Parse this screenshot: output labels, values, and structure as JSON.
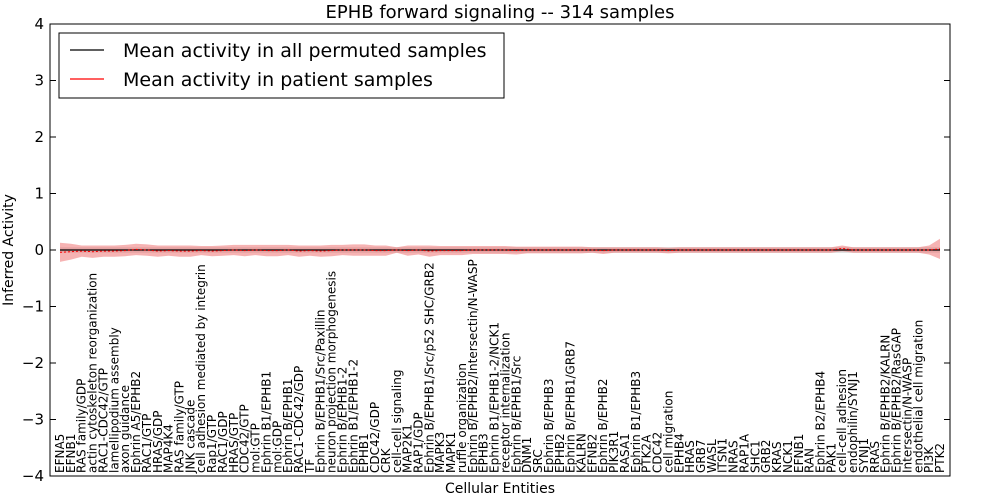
{
  "chart_data": {
    "type": "line",
    "title": "EPHB forward signaling -- 314 samples",
    "xlabel": "Cellular Entities",
    "ylabel": "Inferred Activity",
    "ylim": [
      -4,
      4
    ],
    "yticks": [
      -4,
      -3,
      -2,
      -1,
      0,
      1,
      2,
      3,
      4
    ],
    "grid": false,
    "legend_position": "top-left",
    "categories": [
      "EFNA5",
      "EFNB1",
      "RAS family/GDP",
      "actin cytoskeleton reorganization",
      "RAC1-CDC42/GTP",
      "lamellipodium assembly",
      "axon guidance",
      "Ephrin A5/EPHB2",
      "RAC1/GTP",
      "HRAS/GDP",
      "MAP4K4",
      "RAS family/GTP",
      "JNK cascade",
      "cell adhesion mediated by integrin",
      "Rap1/GTP",
      "RAC1/GDP",
      "HRAS/GTP",
      "CDC42/GTP",
      "mol:GTP",
      "Ephrin B1/EPHB1",
      "mol:GDP",
      "Ephrin B/EPHB1",
      "RAC1-CDC42/GDP",
      "TF",
      "Ephrin B/EPHB1/Src/Paxillin",
      "neuron projection morphogenesis",
      "Ephrin B/EPHB1-2",
      "Ephrin B1/EPHB1-2",
      "EPHB1",
      "CDC42/GDP",
      "CRK",
      "cell-cell signaling",
      "MAP2K1",
      "RAP1/GDP",
      "Ephrin B/EPHB1/Src/p52 SHC/GRB2",
      "MAPK3",
      "MAPK1",
      "ruffle organization",
      "Ephrin B/EPHB2/Intersectin/N-WASP",
      "EPHB3",
      "Ephrin B1/EPHB1-2/NCK1",
      "receptor internalization",
      "Ephrin B/EPHB1/Src",
      "DNM1",
      "SRC",
      "Ephrin B/EPHB3",
      "EPHB2",
      "Ephrin B/EPHB1/GRB7",
      "KALRN",
      "EFNB2",
      "Ephrin B/EPHB2",
      "PIK3R1",
      "RASA1",
      "Ephrin B1/EPHB3",
      "PTK2A",
      "CDC42",
      "cell migration",
      "EPHB4",
      "HRAS",
      "GRB7",
      "WASL",
      "ITSN1",
      "NRAS",
      "RAP1A",
      "SHC1",
      "GRB2",
      "KRAS",
      "NCK1",
      "EFNB1",
      "RAN",
      "Ephrin B2/EPHB4",
      "PAK1",
      "cell-cell adhesion",
      "endophilin/SYNJ1",
      "SYNJ1",
      "RRAS",
      "Ephrin B/EPHB2/KALRN",
      "Ephrin B/EPHB2/RasGAP",
      "Intersectin/N-WASP",
      "endothelial cell migration",
      "PI3K",
      "PTK2"
    ],
    "series": [
      {
        "name": "Mean activity in all permuted samples",
        "color": "#000000",
        "values": [
          0.0,
          0.0,
          0.0,
          0.0,
          0.0,
          0.0,
          0.0,
          0.0,
          0.0,
          0.0,
          0.0,
          0.0,
          0.0,
          0.0,
          0.0,
          0.0,
          0.0,
          0.0,
          0.0,
          0.0,
          0.0,
          0.0,
          0.0,
          0.0,
          0.0,
          0.0,
          0.0,
          0.0,
          0.0,
          0.0,
          0.0,
          0.0,
          0.0,
          0.0,
          0.0,
          0.0,
          0.0,
          0.0,
          0.0,
          0.0,
          0.0,
          0.0,
          0.0,
          0.0,
          0.0,
          0.0,
          0.0,
          0.0,
          0.0,
          0.0,
          0.0,
          0.0,
          0.0,
          0.0,
          0.0,
          0.0,
          0.0,
          0.0,
          0.0,
          0.0,
          0.0,
          0.0,
          0.0,
          0.0,
          0.0,
          0.0,
          0.0,
          0.0,
          0.0,
          0.0,
          0.0,
          0.0,
          0.0,
          0.0,
          0.0,
          0.0,
          0.0,
          0.0,
          0.0,
          0.0,
          0.0,
          0.0
        ]
      },
      {
        "name": "Mean activity in patient samples",
        "color": "#ff0000",
        "values": [
          -0.04,
          -0.03,
          -0.02,
          -0.03,
          -0.02,
          -0.02,
          -0.01,
          0.01,
          0.0,
          -0.02,
          -0.01,
          -0.02,
          -0.02,
          -0.01,
          -0.02,
          -0.01,
          0.0,
          -0.01,
          0.0,
          -0.01,
          -0.01,
          0.0,
          -0.02,
          -0.01,
          -0.02,
          -0.01,
          0.0,
          0.0,
          0.0,
          -0.01,
          -0.01,
          0.0,
          -0.01,
          0.0,
          -0.02,
          -0.01,
          -0.01,
          -0.01,
          0.0,
          0.0,
          0.0,
          0.0,
          -0.01,
          0.0,
          0.0,
          0.0,
          0.0,
          0.0,
          0.0,
          0.0,
          -0.01,
          0.0,
          0.0,
          0.0,
          0.0,
          0.0,
          -0.01,
          0.0,
          0.0,
          0.0,
          0.0,
          0.0,
          0.0,
          0.0,
          0.0,
          0.0,
          0.0,
          0.0,
          0.0,
          0.0,
          0.0,
          0.0,
          0.03,
          0.0,
          0.0,
          0.0,
          0.0,
          0.0,
          0.0,
          0.0,
          0.0,
          0.02
        ]
      }
    ],
    "bands": {
      "permuted_halfwidth": [
        0.05,
        0.05,
        0.05,
        0.05,
        0.05,
        0.05,
        0.05,
        0.05,
        0.05,
        0.05,
        0.05,
        0.05,
        0.05,
        0.05,
        0.05,
        0.05,
        0.05,
        0.05,
        0.05,
        0.05,
        0.05,
        0.05,
        0.05,
        0.05,
        0.05,
        0.05,
        0.05,
        0.05,
        0.05,
        0.05,
        0.05,
        0.05,
        0.05,
        0.05,
        0.05,
        0.05,
        0.05,
        0.05,
        0.05,
        0.05,
        0.05,
        0.05,
        0.05,
        0.05,
        0.05,
        0.05,
        0.05,
        0.05,
        0.05,
        0.05,
        0.05,
        0.05,
        0.05,
        0.05,
        0.05,
        0.05,
        0.05,
        0.05,
        0.05,
        0.05,
        0.05,
        0.05,
        0.05,
        0.05,
        0.05,
        0.05,
        0.05,
        0.05,
        0.05,
        0.05,
        0.05,
        0.05,
        0.05,
        0.05,
        0.05,
        0.05,
        0.05,
        0.05,
        0.05,
        0.05,
        0.05,
        0.05
      ],
      "patient_halfwidth": [
        0.17,
        0.14,
        0.1,
        0.11,
        0.1,
        0.1,
        0.1,
        0.1,
        0.1,
        0.1,
        0.09,
        0.1,
        0.1,
        0.08,
        0.09,
        0.09,
        0.09,
        0.1,
        0.09,
        0.1,
        0.1,
        0.09,
        0.1,
        0.09,
        0.1,
        0.1,
        0.09,
        0.1,
        0.1,
        0.09,
        0.09,
        0.05,
        0.09,
        0.08,
        0.1,
        0.08,
        0.08,
        0.08,
        0.07,
        0.07,
        0.07,
        0.07,
        0.07,
        0.06,
        0.06,
        0.06,
        0.06,
        0.06,
        0.06,
        0.05,
        0.06,
        0.05,
        0.05,
        0.05,
        0.05,
        0.05,
        0.05,
        0.05,
        0.05,
        0.05,
        0.05,
        0.05,
        0.05,
        0.05,
        0.05,
        0.05,
        0.05,
        0.05,
        0.05,
        0.05,
        0.05,
        0.05,
        0.05,
        0.05,
        0.05,
        0.05,
        0.05,
        0.05,
        0.05,
        0.05,
        0.08,
        0.18
      ],
      "permuted_color": "#bbbbbb",
      "patient_color": "#f08080"
    }
  }
}
